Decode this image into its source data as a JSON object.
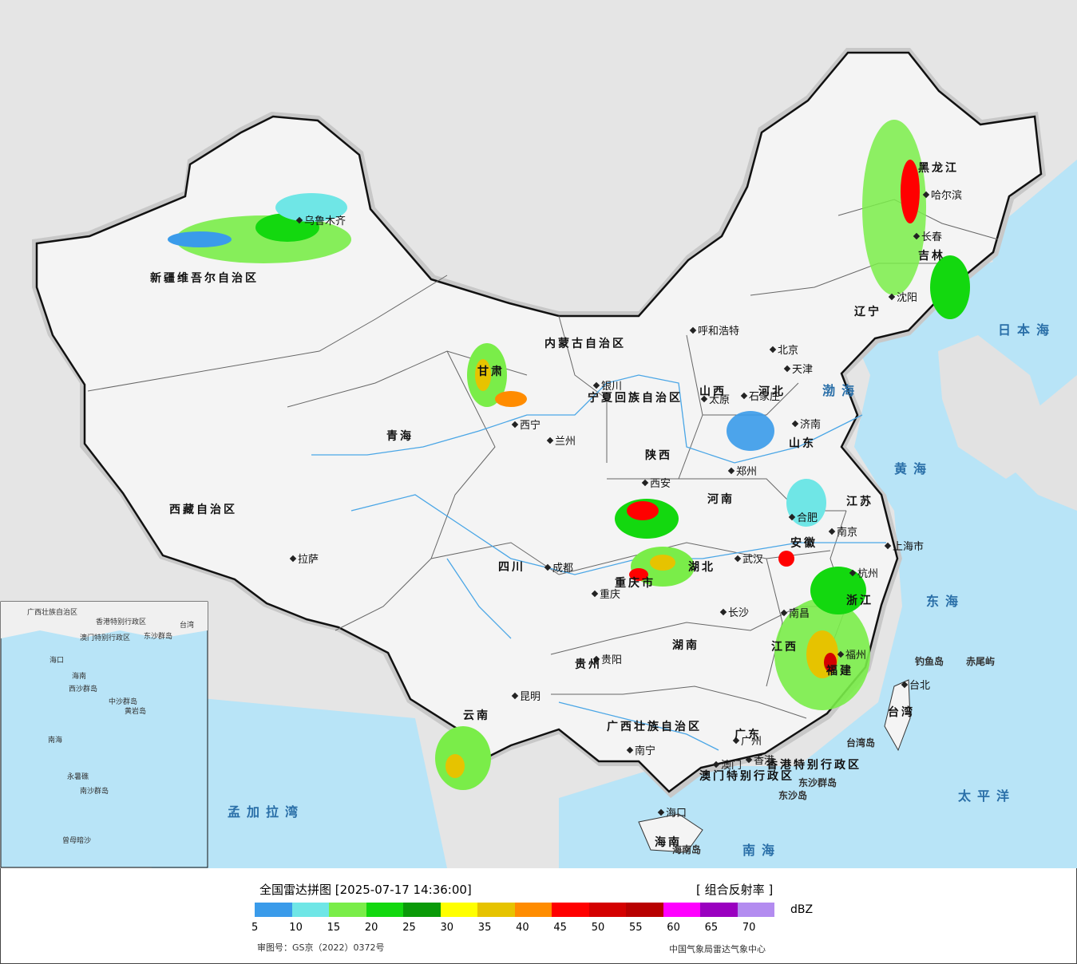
{
  "title": "全国雷达拼图 [2025-07-17 14:36:00]",
  "product": "[ 组合反射率 ]",
  "unit": "dBZ",
  "approval_number": "审图号：GS京（2022）0372号",
  "source": "中国气象局雷达气象中心",
  "colorbar": {
    "colors": [
      "#3a9bea",
      "#6fe6e6",
      "#7aed49",
      "#13d80f",
      "#0a9a08",
      "#ffff00",
      "#e6c300",
      "#ff8c00",
      "#ff0000",
      "#d40000",
      "#b80000",
      "#ff00ff",
      "#9a00c0",
      "#b38cf0"
    ],
    "ticks": [
      "5",
      "10",
      "15",
      "20",
      "25",
      "30",
      "35",
      "40",
      "45",
      "50",
      "55",
      "60",
      "65",
      "70"
    ]
  },
  "cities": [
    {
      "name": "乌鲁木齐"
    },
    {
      "name": "拉萨"
    },
    {
      "name": "西宁"
    },
    {
      "name": "兰州"
    },
    {
      "name": "银川"
    },
    {
      "name": "呼和浩特"
    },
    {
      "name": "北京"
    },
    {
      "name": "天津"
    },
    {
      "name": "石家庄"
    },
    {
      "name": "太原"
    },
    {
      "name": "济南"
    },
    {
      "name": "郑州"
    },
    {
      "name": "西安"
    },
    {
      "name": "成都"
    },
    {
      "name": "重庆"
    },
    {
      "name": "贵阳"
    },
    {
      "name": "昆明"
    },
    {
      "name": "南宁"
    },
    {
      "name": "广州"
    },
    {
      "name": "澳门"
    },
    {
      "name": "香港"
    },
    {
      "name": "海口"
    },
    {
      "name": "长沙"
    },
    {
      "name": "武汉"
    },
    {
      "name": "南昌"
    },
    {
      "name": "福州"
    },
    {
      "name": "杭州"
    },
    {
      "name": "南京"
    },
    {
      "name": "合肥"
    },
    {
      "name": "上海市"
    },
    {
      "name": "台北"
    },
    {
      "name": "沈阳"
    },
    {
      "name": "长春"
    },
    {
      "name": "哈尔滨"
    }
  ],
  "regions": [
    "新疆维吾尔自治区",
    "西藏自治区",
    "青海",
    "甘肃",
    "内蒙古自治区",
    "黑龙江",
    "吉林",
    "辽宁",
    "河北",
    "山西",
    "山东",
    "河南",
    "陕西",
    "四川",
    "重庆市",
    "贵州",
    "云南",
    "广西壮族自治区",
    "广东",
    "湖南",
    "湖北",
    "江西",
    "福建",
    "浙江",
    "安徽",
    "江苏",
    "台湾",
    "海南",
    "宁夏回族自治区",
    "香港特别行政区",
    "澳门特别行政区"
  ],
  "seas": [
    "日本海",
    "渤海",
    "黄海",
    "东海",
    "太平洋",
    "南海",
    "孟加拉湾"
  ],
  "islands": [
    "钓鱼岛",
    "赤尾屿",
    "台湾岛",
    "东沙群岛",
    "东沙岛",
    "海南岛"
  ],
  "inset_labels": [
    "广西壮族自治区",
    "海口",
    "香港特别行政区",
    "澳门特别行政区",
    "台湾",
    "东沙群岛",
    "海南",
    "西沙群岛",
    "中沙群岛",
    "黄岩岛",
    "南海",
    "永暑礁",
    "南沙群岛",
    "曾母暗沙"
  ]
}
